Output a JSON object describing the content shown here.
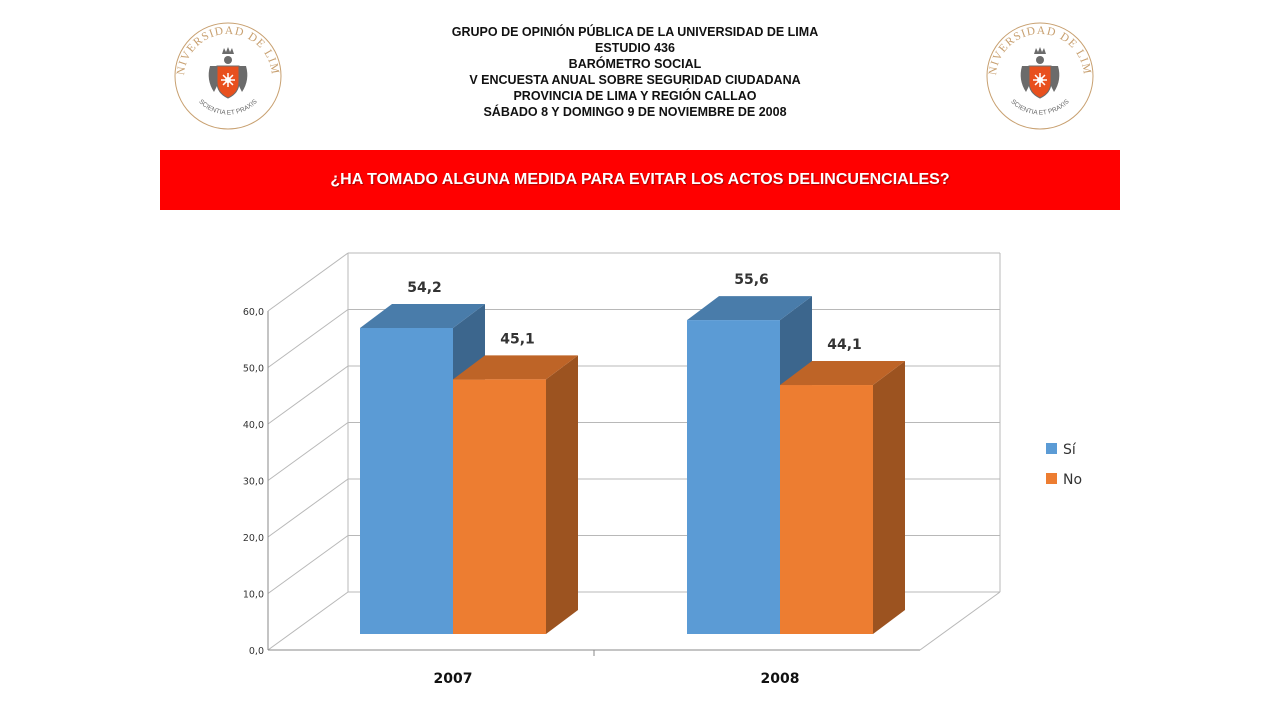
{
  "header": {
    "lines": [
      "GRUPO DE OPINIÓN PÚBLICA DE LA UNIVERSIDAD DE LIMA",
      "ESTUDIO 436",
      "BARÓMETRO SOCIAL",
      "V ENCUESTA ANUAL SOBRE SEGURIDAD CIUDADANA",
      "PROVINCIA DE LIMA Y REGIÓN CALLAO",
      "SÁBADO 8 Y DOMINGO 9 DE NOVIEMBRE DE 2008"
    ]
  },
  "logo": {
    "ring_text": "UNIVERSIDAD DE LIMA",
    "motto": "SCIENTIA ET PRAXIS",
    "colors": {
      "gold": "#c8a070",
      "crest": "#6b6b6b",
      "sun": "#e8501e"
    }
  },
  "question": "¿HA TOMADO ALGUNA MEDIDA PARA EVITAR LOS ACTOS DELINCUENCIALES?",
  "colors": {
    "question_bar": "#ff0000",
    "si": "#5b9bd5",
    "no": "#ed7d31"
  },
  "chart_data": {
    "type": "bar",
    "three_d": true,
    "categories": [
      "2007",
      "2008"
    ],
    "series": [
      {
        "name": "Sí",
        "values": [
          54.2,
          55.6
        ],
        "labels": [
          "54,2",
          "55,6"
        ],
        "color": "#5b9bd5"
      },
      {
        "name": "No",
        "values": [
          45.1,
          44.1
        ],
        "labels": [
          "45,1",
          "44,1"
        ],
        "color": "#ed7d31"
      }
    ],
    "y_ticks": [
      0,
      10,
      20,
      30,
      40,
      50,
      60
    ],
    "y_tick_labels": [
      "0,0",
      "10,0",
      "20,0",
      "30,0",
      "40,0",
      "50,0",
      "60,0"
    ],
    "ylim": [
      0,
      60
    ],
    "grid": true,
    "legend": "right",
    "title": "",
    "xlabel": "",
    "ylabel": ""
  }
}
